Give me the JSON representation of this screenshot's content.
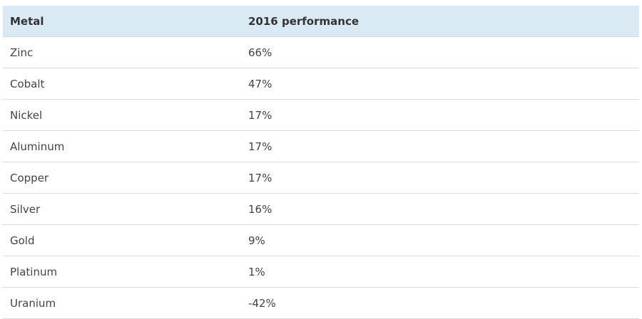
{
  "table": {
    "header": [
      "Metal",
      "2016 performance"
    ],
    "rows": [
      [
        "Zinc",
        "66%"
      ],
      [
        "Cobalt",
        "47%"
      ],
      [
        "Nickel",
        "17%"
      ],
      [
        "Aluminum",
        "17%"
      ],
      [
        "Copper",
        "17%"
      ],
      [
        "Silver",
        "16%"
      ],
      [
        "Gold",
        "9%"
      ],
      [
        "Platinum",
        "1%"
      ],
      [
        "Uranium",
        "-42%"
      ]
    ]
  }
}
